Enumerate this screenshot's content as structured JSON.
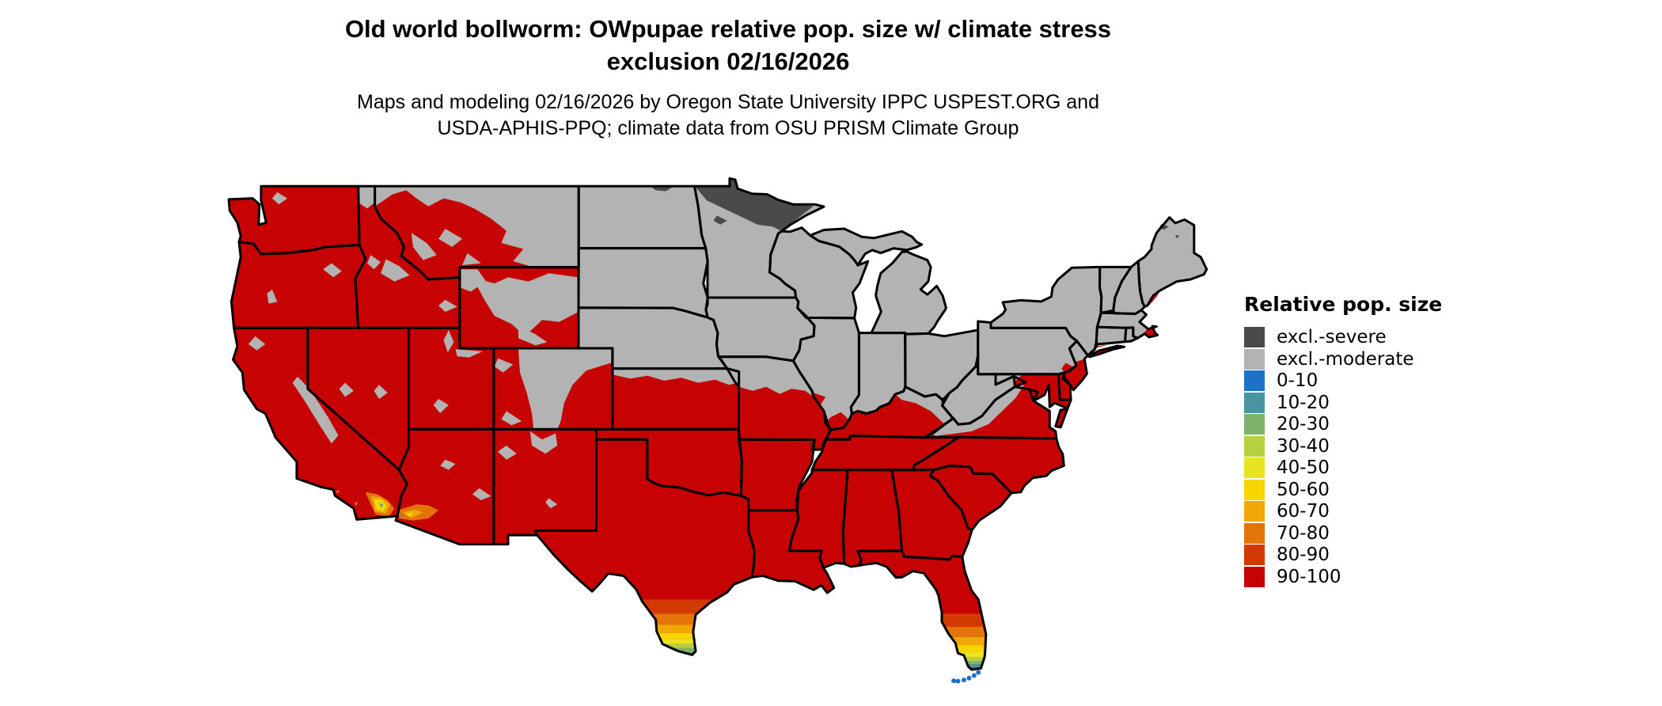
{
  "title": {
    "line1": "Old world bollworm: OWpupae relative pop. size w/ climate stress",
    "line2": "exclusion 02/16/2026"
  },
  "subtitle": {
    "line1": "Maps and modeling 02/16/2026 by Oregon State University IPPC USPEST.ORG and",
    "line2": "USDA-APHIS-PPQ; climate data from OSU PRISM Climate Group"
  },
  "legend": {
    "title": "Relative pop. size",
    "items": [
      {
        "label": "excl.-severe",
        "color": "#4a4a4a"
      },
      {
        "label": "excl.-moderate",
        "color": "#b3b3b3"
      },
      {
        "label": "0-10",
        "color": "#1d72c8"
      },
      {
        "label": "10-20",
        "color": "#4a93a0"
      },
      {
        "label": "20-30",
        "color": "#7db26b"
      },
      {
        "label": "30-40",
        "color": "#b5d13f"
      },
      {
        "label": "40-50",
        "color": "#e9e421"
      },
      {
        "label": "50-60",
        "color": "#f7d500"
      },
      {
        "label": "60-70",
        "color": "#f0a807"
      },
      {
        "label": "70-80",
        "color": "#e37407"
      },
      {
        "label": "80-90",
        "color": "#d23a02"
      },
      {
        "label": "90-100",
        "color": "#c60202"
      }
    ]
  }
}
